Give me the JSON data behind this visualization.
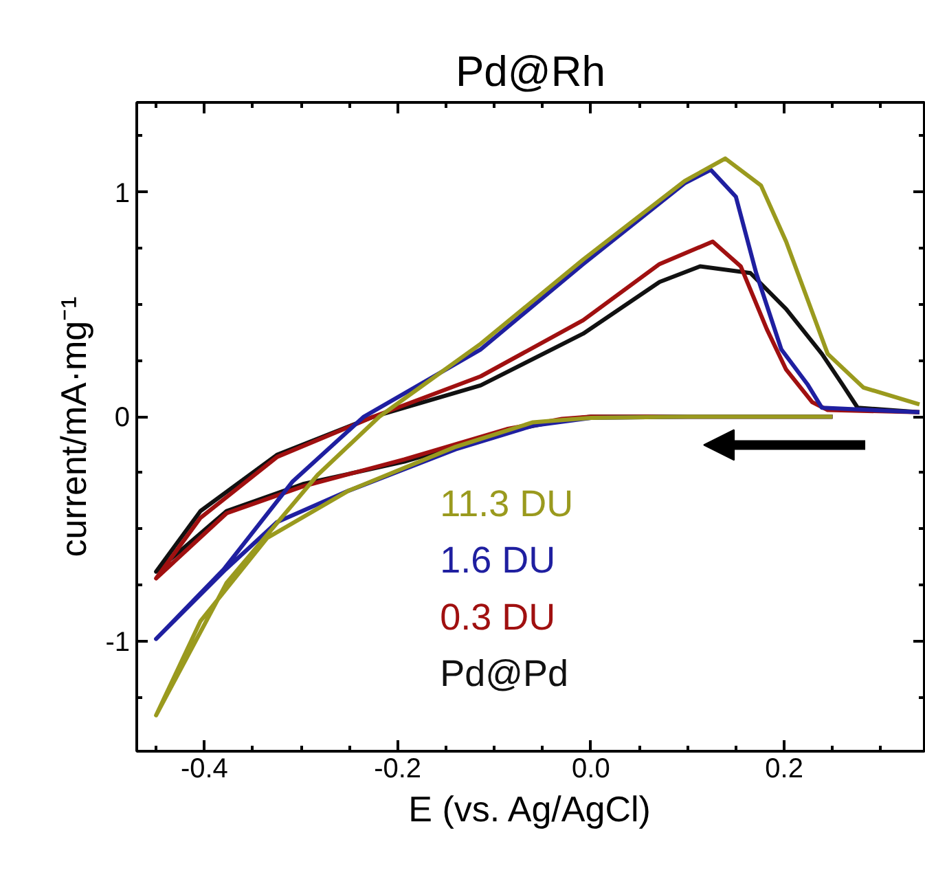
{
  "chart_data": {
    "type": "line",
    "title": "Pd@Rh",
    "xlabel": "E (vs. Ag/AgCl)",
    "ylabel": "current/mA·mg⁻¹",
    "xlim": [
      -0.47,
      0.345
    ],
    "ylim": [
      -1.49,
      1.4
    ],
    "xticks": [
      {
        "value": -0.45,
        "label": null
      },
      -0.4,
      {
        "value": -0.35,
        "label": null
      },
      {
        "value": -0.3,
        "label": null
      },
      {
        "value": -0.25,
        "label": null
      },
      -0.2,
      {
        "value": -0.15,
        "label": null
      },
      {
        "value": -0.1,
        "label": null
      },
      {
        "value": -0.05,
        "label": null
      },
      {
        "value": 0,
        "label": "0.0"
      },
      {
        "value": 0.05,
        "label": null
      },
      {
        "value": 0.1,
        "label": null
      },
      {
        "value": 0.15,
        "label": null
      },
      0.2,
      {
        "value": 0.25,
        "label": null
      },
      {
        "value": 0.3,
        "label": null
      }
    ],
    "yticks": [
      {
        "value": -1.25,
        "label": null
      },
      -1,
      {
        "value": -0.75,
        "label": null
      },
      {
        "value": -0.5,
        "label": null
      },
      {
        "value": -0.25,
        "label": null
      },
      0,
      {
        "value": 0.25,
        "label": null
      },
      {
        "value": 0.5,
        "label": null
      },
      {
        "value": 0.75,
        "label": null
      },
      1,
      {
        "value": 1.25,
        "label": null
      }
    ],
    "grid": false,
    "legend": "bottom",
    "marker": "none",
    "line_style": "solid",
    "series": [
      {
        "name": "11.3 DU",
        "color": "#9a9a1e",
        "x": [
          0.25,
          0.1,
          0.0,
          -0.045,
          -0.06,
          -0.14,
          -0.251,
          -0.335,
          -0.404,
          -0.45,
          -0.377,
          -0.283,
          -0.219,
          -0.114,
          -0.008,
          0.097,
          0.139,
          0.176,
          0.202,
          0.245,
          0.282,
          0.34
        ],
        "values": [
          0.0,
          0.0,
          -0.005,
          -0.02,
          -0.025,
          -0.134,
          -0.33,
          -0.54,
          -0.91,
          -1.33,
          -0.74,
          -0.26,
          0.0,
          0.325,
          0.7,
          1.05,
          1.15,
          1.03,
          0.78,
          0.28,
          0.13,
          0.055
        ]
      },
      {
        "name": "1.6 DU",
        "color": "#1f1fa0",
        "x": [
          0.25,
          0.1,
          0.0,
          -0.06,
          -0.14,
          -0.251,
          -0.325,
          -0.378,
          -0.45,
          -0.38,
          -0.309,
          -0.235,
          -0.114,
          -0.008,
          0.097,
          0.124,
          0.15,
          0.171,
          0.197,
          0.224,
          0.239,
          0.34
        ],
        "values": [
          0.0,
          0.0,
          -0.005,
          -0.04,
          -0.145,
          -0.33,
          -0.47,
          -0.68,
          -0.99,
          -0.68,
          -0.29,
          0.0,
          0.3,
          0.68,
          1.04,
          1.1,
          0.98,
          0.64,
          0.3,
          0.145,
          0.04,
          0.02
        ]
      },
      {
        "name": "0.3 DU",
        "color": "#a01010",
        "x": [
          0.25,
          0.1,
          0.0,
          -0.03,
          -0.087,
          -0.193,
          -0.298,
          -0.377,
          -0.45,
          -0.404,
          -0.325,
          -0.225,
          -0.114,
          -0.008,
          0.071,
          0.126,
          0.155,
          0.182,
          0.202,
          0.229,
          0.245,
          0.34
        ],
        "values": [
          0.0,
          0.0,
          0.0,
          -0.01,
          -0.055,
          -0.19,
          -0.31,
          -0.43,
          -0.72,
          -0.45,
          -0.18,
          0.0,
          0.18,
          0.43,
          0.68,
          0.78,
          0.67,
          0.39,
          0.21,
          0.065,
          0.03,
          0.02
        ]
      },
      {
        "name": "Pd@Pd",
        "color": "#111111",
        "x": [
          0.25,
          0.1,
          0.0,
          -0.03,
          -0.087,
          -0.193,
          -0.298,
          -0.377,
          -0.45,
          -0.404,
          -0.325,
          -0.225,
          -0.114,
          -0.008,
          0.071,
          0.113,
          0.165,
          0.202,
          0.239,
          0.26,
          0.276,
          0.34
        ],
        "values": [
          0.0,
          0.0,
          0.0,
          -0.015,
          -0.065,
          -0.2,
          -0.3,
          -0.42,
          -0.69,
          -0.42,
          -0.17,
          0.0,
          0.14,
          0.37,
          0.6,
          0.67,
          0.64,
          0.48,
          0.28,
          0.145,
          0.04,
          0.02
        ]
      }
    ]
  }
}
